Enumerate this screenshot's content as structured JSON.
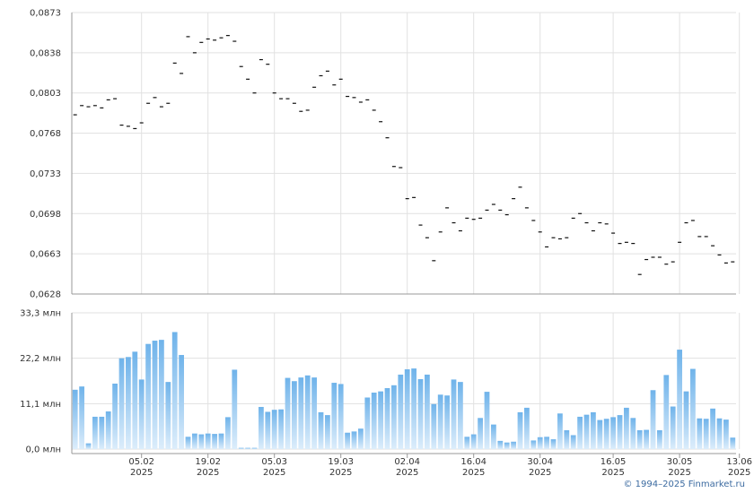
{
  "copyright": "© 1994–2025 Finmarket.ru",
  "chart_data": [
    {
      "type": "scatter",
      "marker": "dash",
      "grid": true,
      "ylim": [
        0.0628,
        0.0873
      ],
      "yticks": [
        "0,0873",
        "0,0838",
        "0,0803",
        "0,0768",
        "0,0733",
        "0,0698",
        "0,0663",
        "0,0628"
      ],
      "values": [
        0.0784,
        0.0792,
        0.0791,
        0.0792,
        0.079,
        0.0797,
        0.0798,
        0.0775,
        0.0774,
        0.0772,
        0.0777,
        0.0794,
        0.0799,
        0.0791,
        0.0794,
        0.0829,
        0.082,
        0.0852,
        0.0838,
        0.0847,
        0.085,
        0.0849,
        0.0851,
        0.0853,
        0.0848,
        0.0826,
        0.0815,
        0.0803,
        0.0832,
        0.0828,
        0.0803,
        0.0798,
        0.0798,
        0.0794,
        0.0787,
        0.0788,
        0.0808,
        0.0818,
        0.0822,
        0.081,
        0.0815,
        0.08,
        0.0799,
        0.0795,
        0.0797,
        0.0788,
        0.0778,
        0.0764,
        0.0739,
        0.0738,
        0.0711,
        0.0712,
        0.0688,
        0.0677,
        0.0657,
        0.0682,
        0.0703,
        0.069,
        0.0683,
        0.0694,
        0.0693,
        0.0694,
        0.0701,
        0.0706,
        0.0701,
        0.0697,
        0.0711,
        0.0721,
        0.0703,
        0.0692,
        0.0682,
        0.0669,
        0.0677,
        0.0676,
        0.0677,
        0.0694,
        0.0698,
        0.069,
        0.0683,
        0.069,
        0.0689,
        0.0681,
        0.0672,
        0.0673,
        0.0672,
        0.0645,
        0.0658,
        0.066,
        0.066,
        0.0654,
        0.0656,
        0.0673,
        0.069,
        0.0692,
        0.0678,
        0.0678,
        0.067,
        0.0662,
        0.0655,
        0.0656
      ]
    },
    {
      "type": "bar",
      "ylim": [
        0,
        33.3
      ],
      "yticks": [
        "33,3 млн",
        "22,2 млн",
        "11,1 млн",
        "0,0 млн"
      ],
      "values": [
        14.5,
        15.3,
        1.4,
        7.9,
        7.9,
        9.2,
        16.0,
        22.2,
        22.5,
        23.8,
        17.0,
        25.7,
        26.5,
        26.7,
        16.4,
        28.6,
        23.0,
        3.0,
        3.8,
        3.6,
        3.8,
        3.7,
        3.8,
        7.8,
        19.4,
        0.3,
        0.3,
        0.3,
        10.3,
        9.1,
        9.6,
        9.7,
        17.4,
        16.6,
        17.5,
        18.0,
        17.5,
        9.0,
        8.3,
        16.2,
        15.9,
        4.0,
        4.3,
        5.0,
        12.6,
        13.8,
        14.1,
        14.9,
        15.6,
        18.2,
        19.5,
        19.7,
        17.1,
        18.2,
        11.0,
        13.3,
        13.1,
        17.0,
        16.4,
        3.0,
        3.6,
        7.6,
        14.0,
        6.0,
        2.0,
        1.6,
        1.8,
        9.0,
        10.1,
        2.1,
        2.9,
        3.0,
        2.4,
        8.7,
        4.6,
        3.4,
        7.9,
        8.4,
        9.0,
        7.1,
        7.4,
        7.8,
        8.3,
        10.1,
        7.6,
        4.6,
        4.7,
        14.4,
        4.6,
        18.1,
        10.4,
        24.3,
        14.1,
        19.6,
        7.5,
        7.4,
        9.9,
        7.5,
        7.2,
        2.8
      ],
      "xticks": [
        {
          "day": "05.02",
          "year": "2025"
        },
        {
          "day": "19.02",
          "year": "2025"
        },
        {
          "day": "05.03",
          "year": "2025"
        },
        {
          "day": "19.03",
          "year": "2025"
        },
        {
          "day": "02.04",
          "year": "2025"
        },
        {
          "day": "16.04",
          "year": "2025"
        },
        {
          "day": "30.04",
          "year": "2025"
        },
        {
          "day": "16.05",
          "year": "2025"
        },
        {
          "day": "30.05",
          "year": "2025"
        },
        {
          "day": "13.06",
          "year": "2025"
        }
      ],
      "xtick_index": [
        10,
        20,
        30,
        40,
        50,
        60,
        70,
        81,
        91,
        100
      ]
    }
  ]
}
